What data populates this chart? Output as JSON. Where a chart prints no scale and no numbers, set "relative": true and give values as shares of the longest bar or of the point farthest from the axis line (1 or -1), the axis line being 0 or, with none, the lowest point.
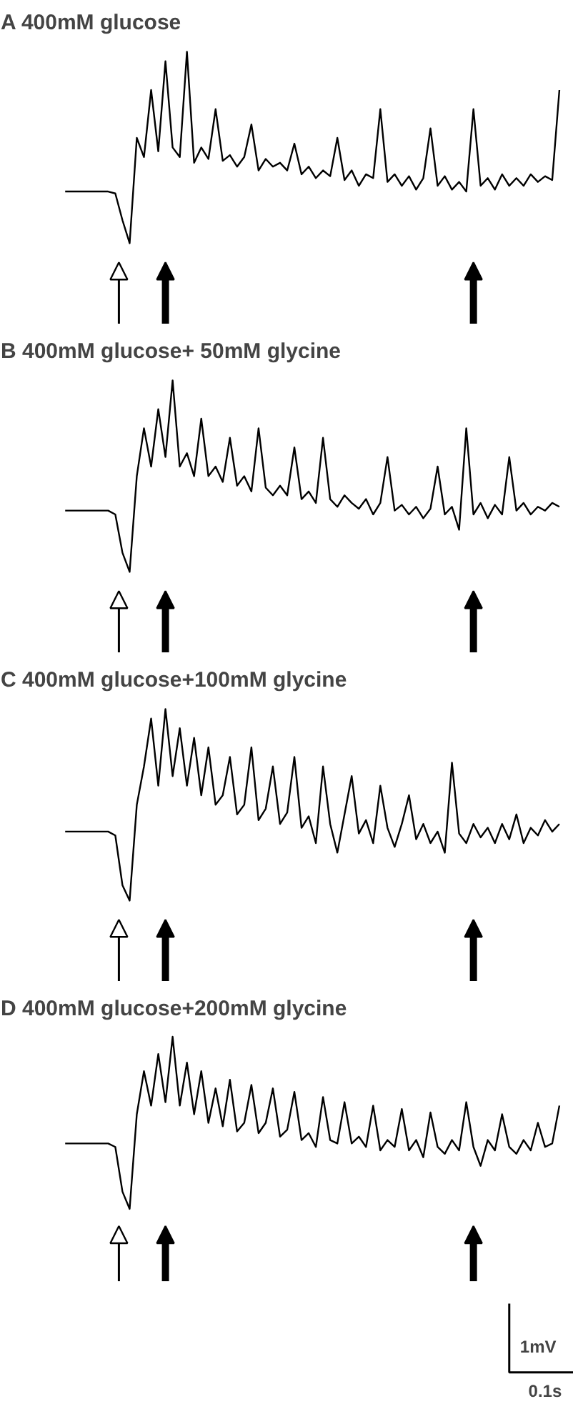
{
  "chart_data": [
    {
      "type": "line",
      "title": "A 400mM glucose",
      "relative": true,
      "categories": [
        null,
        null,
        null,
        null,
        null,
        null,
        null,
        null,
        null,
        null,
        null,
        null,
        null,
        null,
        null,
        null,
        null,
        null,
        null,
        null,
        null,
        null,
        null,
        null,
        null,
        null,
        null,
        null,
        null,
        null,
        null,
        null,
        null,
        null,
        null,
        null,
        null,
        null,
        null,
        null,
        null,
        null,
        null,
        null,
        null,
        null,
        null,
        null,
        null,
        null,
        null,
        null,
        null,
        null,
        null,
        null,
        null,
        null,
        null,
        null,
        null,
        null,
        null,
        null,
        null,
        null,
        null,
        null,
        null,
        null
      ],
      "series": [
        {
          "color": "#000000",
          "values": [
            0.27,
            0.27,
            0.27,
            0.27,
            0.27,
            0.27,
            0.27,
            0.26,
            0.12,
            0.0,
            0.55,
            0.45,
            0.8,
            0.48,
            0.95,
            0.5,
            0.45,
            1.0,
            0.42,
            0.5,
            0.44,
            0.7,
            0.43,
            0.46,
            0.4,
            0.45,
            0.62,
            0.38,
            0.44,
            0.4,
            0.42,
            0.38,
            0.52,
            0.36,
            0.4,
            0.34,
            0.38,
            0.35,
            0.55,
            0.33,
            0.38,
            0.3,
            0.36,
            0.34,
            0.7,
            0.32,
            0.36,
            0.3,
            0.35,
            0.28,
            0.34,
            0.6,
            0.3,
            0.35,
            0.28,
            0.32,
            0.27,
            0.7,
            0.3,
            0.34,
            0.28,
            0.36,
            0.3,
            0.34,
            0.3,
            0.36,
            0.32,
            0.35,
            0.33,
            0.8
          ]
        }
      ]
    },
    {
      "type": "line",
      "title": "B 400mM glucose+  50mM glycine",
      "relative": true,
      "categories": [
        null,
        null,
        null,
        null,
        null,
        null,
        null,
        null,
        null,
        null,
        null,
        null,
        null,
        null,
        null,
        null,
        null,
        null,
        null,
        null,
        null,
        null,
        null,
        null,
        null,
        null,
        null,
        null,
        null,
        null,
        null,
        null,
        null,
        null,
        null,
        null,
        null,
        null,
        null,
        null,
        null,
        null,
        null,
        null,
        null,
        null,
        null,
        null,
        null,
        null,
        null,
        null,
        null,
        null,
        null,
        null,
        null,
        null,
        null,
        null,
        null,
        null,
        null,
        null,
        null,
        null,
        null,
        null,
        null,
        null
      ],
      "series": [
        {
          "color": "#000000",
          "values": [
            0.32,
            0.32,
            0.32,
            0.32,
            0.32,
            0.32,
            0.32,
            0.3,
            0.1,
            0.0,
            0.5,
            0.75,
            0.55,
            0.85,
            0.6,
            1.0,
            0.55,
            0.62,
            0.5,
            0.8,
            0.5,
            0.55,
            0.47,
            0.7,
            0.45,
            0.5,
            0.42,
            0.75,
            0.44,
            0.4,
            0.45,
            0.4,
            0.65,
            0.38,
            0.42,
            0.36,
            0.7,
            0.38,
            0.34,
            0.4,
            0.36,
            0.33,
            0.38,
            0.3,
            0.36,
            0.6,
            0.32,
            0.35,
            0.3,
            0.34,
            0.28,
            0.33,
            0.55,
            0.3,
            0.34,
            0.22,
            0.75,
            0.3,
            0.36,
            0.28,
            0.35,
            0.3,
            0.6,
            0.32,
            0.36,
            0.3,
            0.34,
            0.32,
            0.36,
            0.34
          ]
        }
      ]
    },
    {
      "type": "line",
      "title": "C 400mM glucose+100mM glycine",
      "relative": true,
      "categories": [
        null,
        null,
        null,
        null,
        null,
        null,
        null,
        null,
        null,
        null,
        null,
        null,
        null,
        null,
        null,
        null,
        null,
        null,
        null,
        null,
        null,
        null,
        null,
        null,
        null,
        null,
        null,
        null,
        null,
        null,
        null,
        null,
        null,
        null,
        null,
        null,
        null,
        null,
        null,
        null,
        null,
        null,
        null,
        null,
        null,
        null,
        null,
        null,
        null,
        null,
        null,
        null,
        null,
        null,
        null,
        null,
        null,
        null,
        null,
        null,
        null,
        null,
        null,
        null,
        null,
        null,
        null,
        null,
        null,
        null
      ],
      "series": [
        {
          "color": "#000000",
          "values": [
            0.36,
            0.36,
            0.36,
            0.36,
            0.36,
            0.36,
            0.36,
            0.34,
            0.08,
            0.0,
            0.5,
            0.7,
            0.95,
            0.6,
            1.0,
            0.65,
            0.9,
            0.6,
            0.85,
            0.55,
            0.8,
            0.5,
            0.55,
            0.75,
            0.45,
            0.5,
            0.8,
            0.42,
            0.48,
            0.7,
            0.4,
            0.46,
            0.75,
            0.38,
            0.44,
            0.3,
            0.7,
            0.4,
            0.25,
            0.45,
            0.65,
            0.35,
            0.42,
            0.3,
            0.6,
            0.38,
            0.28,
            0.4,
            0.55,
            0.32,
            0.4,
            0.3,
            0.36,
            0.25,
            0.72,
            0.35,
            0.3,
            0.4,
            0.33,
            0.38,
            0.3,
            0.4,
            0.32,
            0.45,
            0.3,
            0.38,
            0.34,
            0.42,
            0.36,
            0.4
          ]
        }
      ]
    },
    {
      "type": "line",
      "title": "D 400mM glucose+200mM glycine",
      "relative": true,
      "annotations": [
        "1mV",
        "0.1s"
      ],
      "categories": [
        null,
        null,
        null,
        null,
        null,
        null,
        null,
        null,
        null,
        null,
        null,
        null,
        null,
        null,
        null,
        null,
        null,
        null,
        null,
        null,
        null,
        null,
        null,
        null,
        null,
        null,
        null,
        null,
        null,
        null,
        null,
        null,
        null,
        null,
        null,
        null,
        null,
        null,
        null,
        null,
        null,
        null,
        null,
        null,
        null,
        null,
        null,
        null,
        null,
        null,
        null,
        null,
        null,
        null,
        null,
        null,
        null,
        null,
        null,
        null,
        null,
        null,
        null,
        null,
        null,
        null,
        null,
        null,
        null,
        null
      ],
      "series": [
        {
          "color": "#000000",
          "values": [
            0.38,
            0.38,
            0.38,
            0.38,
            0.38,
            0.38,
            0.38,
            0.36,
            0.1,
            0.0,
            0.55,
            0.8,
            0.6,
            0.9,
            0.62,
            1.0,
            0.6,
            0.85,
            0.55,
            0.8,
            0.5,
            0.7,
            0.48,
            0.75,
            0.45,
            0.5,
            0.72,
            0.44,
            0.5,
            0.7,
            0.42,
            0.46,
            0.68,
            0.4,
            0.44,
            0.36,
            0.65,
            0.4,
            0.38,
            0.62,
            0.38,
            0.42,
            0.36,
            0.6,
            0.34,
            0.4,
            0.36,
            0.58,
            0.34,
            0.4,
            0.3,
            0.56,
            0.36,
            0.32,
            0.4,
            0.34,
            0.62,
            0.36,
            0.25,
            0.4,
            0.34,
            0.55,
            0.36,
            0.32,
            0.4,
            0.34,
            0.5,
            0.36,
            0.38,
            0.6
          ]
        }
      ]
    }
  ]
}
